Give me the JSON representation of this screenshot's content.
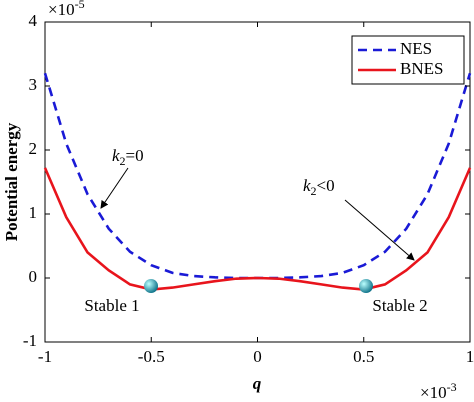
{
  "chart_data": {
    "type": "line",
    "x_label": "q",
    "y_label": "Potential energy",
    "x_exponent": {
      "base": "×10",
      "power": "-3"
    },
    "y_exponent": {
      "base": "×10",
      "power": "-5"
    },
    "x": [
      -1,
      -0.9,
      -0.8,
      -0.7,
      -0.6,
      -0.5,
      -0.4,
      -0.3,
      -0.2,
      -0.1,
      0,
      0.1,
      0.2,
      0.3,
      0.4,
      0.5,
      0.6,
      0.7,
      0.8,
      0.9,
      1
    ],
    "series": [
      {
        "name": "NES",
        "color": "#1a1ad6",
        "dash": true,
        "values": [
          3.2,
          2.1,
          1.31,
          0.77,
          0.41,
          0.2,
          0.08,
          0.03,
          0.01,
          0,
          0,
          0,
          0.01,
          0.03,
          0.08,
          0.2,
          0.41,
          0.77,
          1.31,
          2.1,
          3.2
        ]
      },
      {
        "name": "BNES",
        "color": "#e8141c",
        "dash": false,
        "values": [
          1.72,
          0.95,
          0.4,
          0.12,
          -0.1,
          -0.18,
          -0.15,
          -0.1,
          -0.05,
          -0.01,
          0,
          -0.01,
          -0.05,
          -0.1,
          -0.15,
          -0.18,
          -0.1,
          0.12,
          0.4,
          0.95,
          1.72
        ]
      }
    ],
    "xlim": [
      -1,
      1
    ],
    "xticks": [
      -1,
      -0.5,
      0,
      0.5,
      1
    ],
    "ylim": [
      -1,
      4
    ],
    "yticks": [
      -1,
      0,
      1,
      2,
      3,
      4
    ],
    "grid": false,
    "legend": "northeast",
    "annotations": [
      {
        "symbol": "k",
        "subscript": "2",
        "relation": "=0"
      },
      {
        "symbol": "k",
        "subscript": "2",
        "relation": "<0"
      },
      {
        "text": "Stable 1"
      },
      {
        "text": "Stable 2"
      }
    ]
  }
}
